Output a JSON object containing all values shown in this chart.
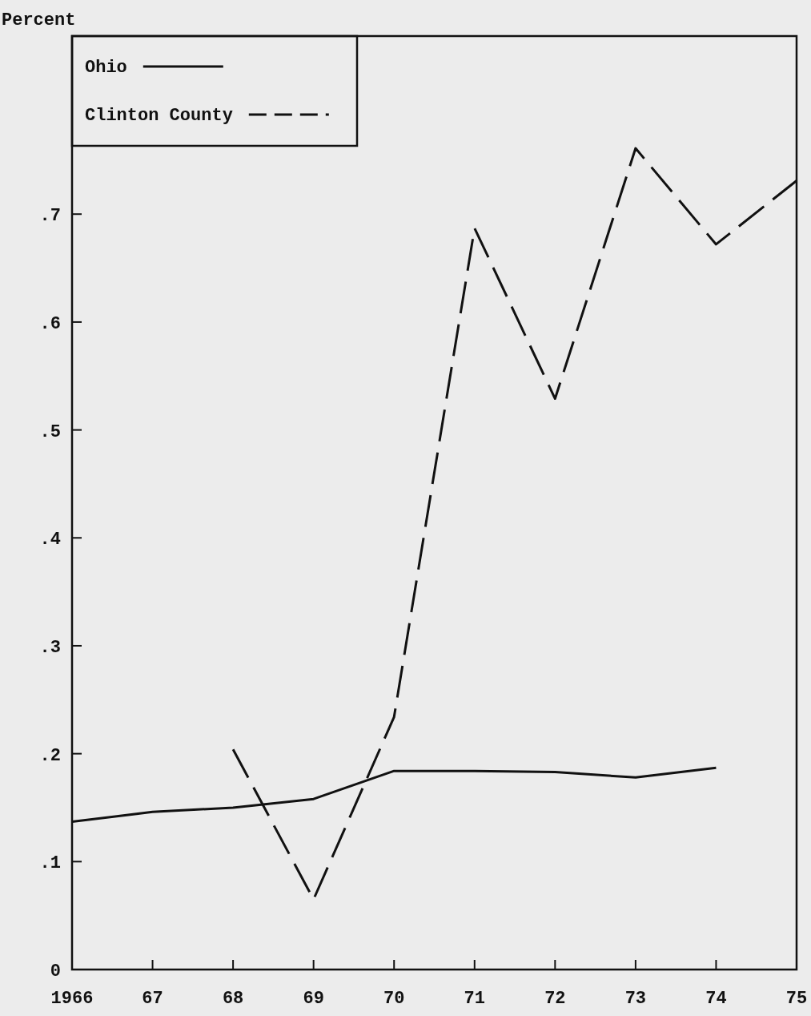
{
  "chart_data": {
    "type": "line",
    "ylabel": "Percent",
    "x": [
      1966,
      1967,
      1968,
      1969,
      1970,
      1971,
      1972,
      1973,
      1974,
      1975
    ],
    "xlim": [
      1966,
      1975
    ],
    "xticks": [
      1966,
      {
        "value": 1967,
        "label": "67"
      },
      {
        "value": 1968,
        "label": "68"
      },
      {
        "value": 1969,
        "label": "69"
      },
      {
        "value": 1970,
        "label": "70"
      },
      {
        "value": 1971,
        "label": "71"
      },
      {
        "value": 1972,
        "label": "72"
      },
      {
        "value": 1973,
        "label": "73"
      },
      {
        "value": 1974,
        "label": "74"
      },
      {
        "value": 1975,
        "label": "75"
      }
    ],
    "ylim": [
      0,
      0.865
    ],
    "yticks": [
      0,
      {
        "value": 0.1,
        "label": ".1"
      },
      {
        "value": 0.2,
        "label": ".2"
      },
      {
        "value": 0.3,
        "label": ".3"
      },
      {
        "value": 0.4,
        "label": ".4"
      },
      {
        "value": 0.5,
        "label": ".5"
      },
      {
        "value": 0.6,
        "label": ".6"
      },
      {
        "value": 0.7,
        "label": ".7"
      }
    ],
    "series": [
      {
        "name": "Ohio",
        "color": "#111111",
        "line_style": "solid",
        "values": [
          0.137,
          0.146,
          0.15,
          0.158,
          0.184,
          0.184,
          0.183,
          0.178,
          0.187,
          null
        ]
      },
      {
        "name": "Clinton County",
        "color": "#111111",
        "line_style": "dashed",
        "values": [
          null,
          null,
          0.204,
          0.065,
          0.234,
          0.687,
          0.529,
          0.761,
          0.672,
          0.731
        ]
      }
    ],
    "legend": "top left",
    "grid": false,
    "marker": "none"
  }
}
